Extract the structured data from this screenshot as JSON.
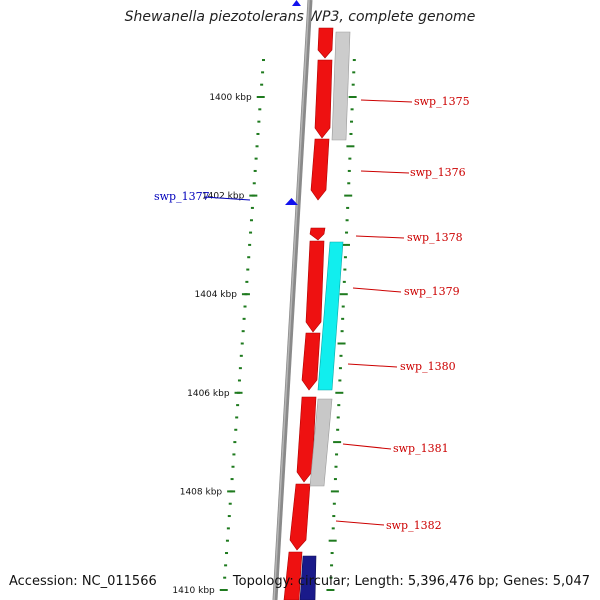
{
  "title": "Shewanella piezotolerans WP3, complete genome",
  "footer": {
    "accession": "Accession: NC_011566",
    "summary": "Topology: circular; Length: 5,396,476 bp; Genes: 5,047"
  },
  "colors": {
    "forward_cds": "#ee1111",
    "reverse_cds_grey": "#c8c8c8",
    "reverse_cds_cyan": "#11eeee",
    "reverse_cds_navy": "#1a1a8a",
    "backbone": "#888888",
    "ticks": "#1e7a1e",
    "gene_label": "#cc0000",
    "highlight_label": "#0000bb",
    "marker": "#1111ee"
  },
  "position_ticks": [
    {
      "label": "1400 kbp",
      "kbp": 1400
    },
    {
      "label": "1402 kbp",
      "kbp": 1402
    },
    {
      "label": "1404 kbp",
      "kbp": 1404
    },
    {
      "label": "1406 kbp",
      "kbp": 1406
    },
    {
      "label": "1408 kbp",
      "kbp": 1408
    },
    {
      "label": "1410 kbp",
      "kbp": 1410
    }
  ],
  "gene_labels": [
    "swp_1375",
    "swp_1376",
    "swp_1378",
    "swp_1379",
    "swp_1380",
    "swp_1381",
    "swp_1382"
  ],
  "highlight_gene": "swp_1377"
}
